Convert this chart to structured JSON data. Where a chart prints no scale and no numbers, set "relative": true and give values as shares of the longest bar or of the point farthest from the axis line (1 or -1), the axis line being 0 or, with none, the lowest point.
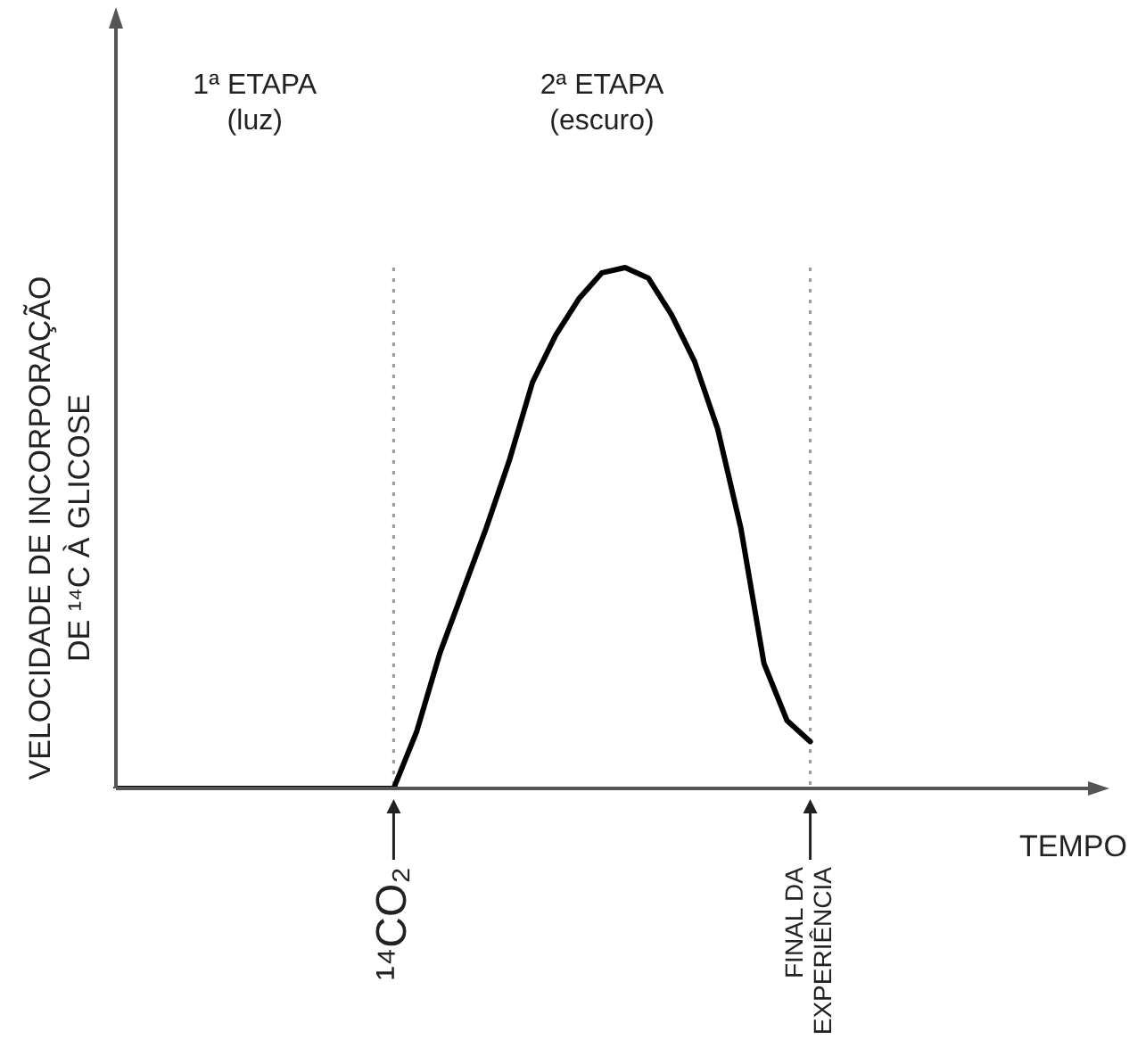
{
  "chart_data": {
    "type": "line",
    "relative": true,
    "xlabel": "TEMPO",
    "ylabel": "VELOCIDADE DE INCORPORAÇÃO\nDE ¹⁴C À GLICOSE",
    "categories": [
      null,
      null,
      null,
      null,
      null,
      null,
      null,
      null,
      null,
      null,
      null,
      null,
      null,
      null,
      null,
      null,
      null,
      null,
      null,
      null,
      null,
      null,
      null,
      null,
      null,
      null,
      null,
      null,
      null,
      null,
      null,
      null,
      null,
      null,
      null,
      null,
      null,
      null,
      null,
      null,
      null,
      null,
      null
    ],
    "marker": "none",
    "line_style": "solid",
    "series": [
      {
        "color": "#000000",
        "values": [
          0,
          0,
          0,
          0,
          0,
          0,
          0,
          0,
          0,
          0,
          0,
          0,
          0,
          0.11,
          0.26,
          0.38,
          0.5,
          0.63,
          0.78,
          0.87,
          0.94,
          0.99,
          1.0,
          0.98,
          0.91,
          0.82,
          0.69,
          0.5,
          0.24,
          0.13,
          0.09,
          null,
          null,
          null,
          null,
          null,
          null,
          null,
          null,
          null,
          null,
          null,
          null
        ]
      }
    ],
    "ref_lines": [
      {
        "axis": "x",
        "label": "¹⁴CO₂",
        "color": "#999999",
        "line_style": "dotted"
      },
      {
        "axis": "x",
        "label": "FINAL DA\nEXPERIÊNCIA",
        "color": "#999999",
        "line_style": "dotted"
      }
    ],
    "annotations": [
      "1ª ETAPA\n(luz)",
      "2ª ETAPA\n(escuro)"
    ]
  }
}
